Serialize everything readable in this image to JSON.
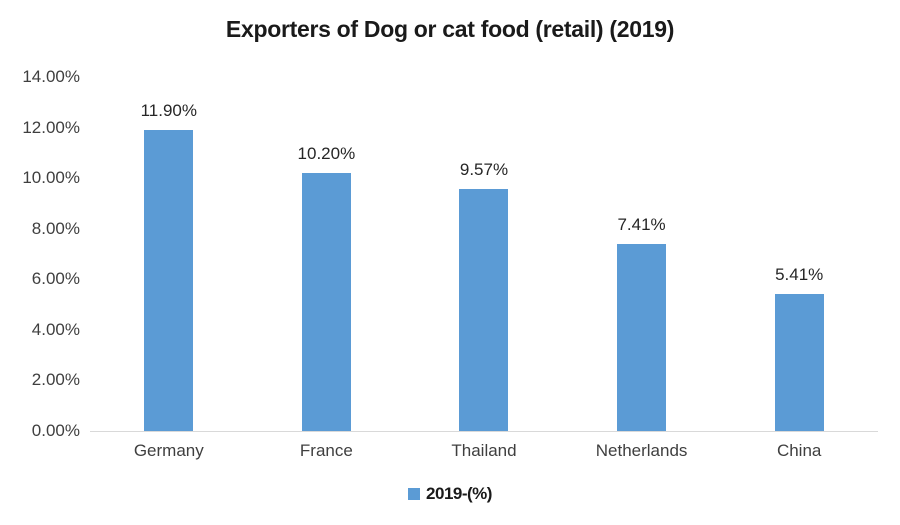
{
  "title": "Exporters of Dog or cat food (retail) (2019)",
  "legend": {
    "label": "2019-(%)",
    "marker_color": "#5B9BD5"
  },
  "axes": {
    "y_ticks": [
      "14.00%",
      "12.00%",
      "10.00%",
      "8.00%",
      "6.00%",
      "4.00%",
      "2.00%",
      "0.00%"
    ]
  },
  "colors": {
    "bar": "#5B9BD5",
    "axis_line": "#D9D9D9",
    "label_text": "#3F3F3F",
    "title_text": "#1A1A1A"
  },
  "chart_data": {
    "type": "bar",
    "title": "Exporters of Dog or cat food (retail) (2019)",
    "categories": [
      "Germany",
      "France",
      "Thailand",
      "Netherlands",
      "China"
    ],
    "series": [
      {
        "name": "2019-(%)",
        "values": [
          11.9,
          10.2,
          9.57,
          7.41,
          5.41
        ]
      }
    ],
    "data_labels": [
      "11.90%",
      "10.20%",
      "9.57%",
      "7.41%",
      "5.41%"
    ],
    "xlabel": "",
    "ylabel": "",
    "ylim": [
      0,
      14
    ],
    "y_tick_interval": 2,
    "y_tick_format": "0.00%",
    "grid": false,
    "legend_position": "bottom",
    "bar_color": "#5B9BD5",
    "axis_line_color": "#D9D9D9"
  }
}
